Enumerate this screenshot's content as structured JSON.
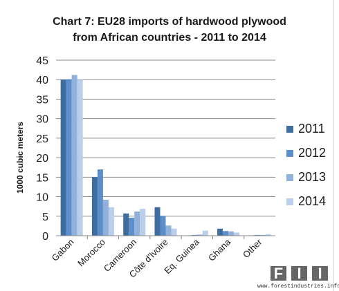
{
  "chart_data": {
    "type": "bar",
    "title_lines": [
      "Chart 7: EU28 imports of hardwood plywood",
      "from African countries - 2011 to 2014"
    ],
    "ylabel": "1000 cubic meters",
    "xlabel": "",
    "ylim": [
      0,
      45
    ],
    "yticks": [
      0,
      5,
      10,
      15,
      20,
      25,
      30,
      35,
      40,
      45
    ],
    "grid": true,
    "legend_position": "right",
    "categories": [
      "Gabon",
      "Morocco",
      "Cameroon",
      "Côte d'Ivoire",
      "Eq. Guinea",
      "Ghana",
      "Other"
    ],
    "series": [
      {
        "name": "2011",
        "color": "#3E6D9E",
        "values": [
          40.0,
          15.0,
          5.7,
          7.3,
          0.1,
          1.8,
          0.1
        ]
      },
      {
        "name": "2012",
        "color": "#5B8FCB",
        "values": [
          40.1,
          17.0,
          4.6,
          5.1,
          0.2,
          1.2,
          0.2
        ]
      },
      {
        "name": "2013",
        "color": "#8FB1DB",
        "values": [
          41.2,
          9.2,
          6.2,
          2.6,
          0.3,
          1.1,
          0.2
        ]
      },
      {
        "name": "2014",
        "color": "#B9CFEB",
        "values": [
          40.0,
          7.3,
          6.9,
          1.8,
          1.3,
          0.8,
          0.4
        ]
      }
    ]
  },
  "watermark": {
    "letters": [
      "F",
      "I",
      "I"
    ],
    "url": "www.forestindustries.info"
  }
}
